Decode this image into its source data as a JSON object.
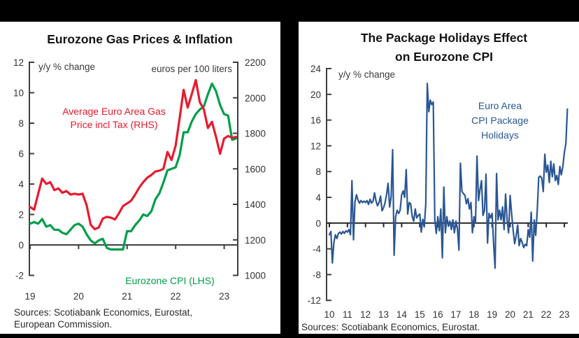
{
  "frame": {
    "bar_color": "#000000",
    "background": "#ffffff"
  },
  "left_panel": {
    "title": "Eurozone Gas Prices & Inflation",
    "left_axis_note": "y/y % change",
    "right_axis_note": "euros per 100 liters",
    "gas_label_lines": [
      "Average Euro Area Gas",
      "Price incl Tax (RHS)"
    ],
    "cpi_label": "Eurozone CPI (LHS)",
    "sources_lines": [
      "Sources: Scotiabank Economics, Eurostat,",
      "European Commission."
    ]
  },
  "right_panel": {
    "title_lines": [
      "The Package Holidays Effect",
      "on Eurozone CPI"
    ],
    "axis_note": "y/y % change",
    "series_label_lines": [
      "Euro Area",
      "CPI Package",
      "Holidays"
    ],
    "sources": "Sources: Scotiabank Economics, Eurostat."
  },
  "colors": {
    "gas_red": "#e81a2e",
    "cpi_green": "#009e49",
    "holidays_blue": "#2a5694",
    "axis": "#3f3f3f",
    "tick_text": "#333333"
  },
  "chart_data": [
    {
      "type": "line",
      "title": "Eurozone Gas Prices & Inflation",
      "x_start": "2019-01",
      "x_frequency": "monthly",
      "xticks": [
        19,
        20,
        21,
        22,
        23
      ],
      "left_axis": {
        "label": "y/y % change",
        "ylim": [
          -2,
          12
        ],
        "yticks": [
          12,
          10,
          8,
          6,
          4,
          2,
          0,
          -2
        ]
      },
      "right_axis": {
        "label": "euros per 100 liters",
        "ylim": [
          1000,
          2200
        ],
        "yticks": [
          2200,
          2000,
          1800,
          1600,
          1400,
          1200,
          1000
        ]
      },
      "grid": false,
      "series": [
        {
          "name": "Eurozone CPI (LHS)",
          "axis": "left",
          "color": "#009e49",
          "values": [
            1.4,
            1.5,
            1.4,
            1.7,
            1.2,
            1.3,
            1.0,
            1.0,
            0.8,
            0.7,
            1.0,
            1.3,
            1.4,
            1.2,
            0.7,
            0.3,
            0.1,
            0.3,
            0.4,
            -0.2,
            -0.3,
            -0.3,
            -0.3,
            -0.3,
            0.9,
            0.9,
            1.3,
            1.6,
            2.0,
            1.9,
            2.2,
            3.0,
            3.4,
            4.1,
            4.9,
            5.0,
            5.1,
            5.9,
            7.4,
            7.4,
            8.1,
            8.6,
            8.9,
            9.1,
            9.9,
            10.6,
            10.1,
            9.2,
            8.6,
            8.5,
            6.9,
            7.0
          ]
        },
        {
          "name": "Average Euro Area Gas Price incl Tax (RHS)",
          "axis": "right",
          "color": "#e81a2e",
          "values": [
            1385,
            1370,
            1460,
            1545,
            1515,
            1525,
            1480,
            1490,
            1465,
            1475,
            1455,
            1460,
            1455,
            1460,
            1395,
            1285,
            1260,
            1270,
            1320,
            1330,
            1325,
            1315,
            1350,
            1390,
            1405,
            1420,
            1455,
            1495,
            1525,
            1550,
            1565,
            1585,
            1590,
            1600,
            1695,
            1650,
            1730,
            1885,
            2045,
            1945,
            2020,
            2100,
            1975,
            1935,
            1830,
            1865,
            1780,
            1685,
            1770,
            1785,
            1775,
            1780
          ]
        }
      ]
    },
    {
      "type": "line",
      "title": "The Package Holidays Effect on Eurozone CPI",
      "x_start": "2010-01",
      "x_frequency": "monthly",
      "xticks": [
        10,
        11,
        12,
        13,
        14,
        15,
        16,
        17,
        18,
        19,
        20,
        21,
        22,
        23
      ],
      "left_axis": {
        "label": "y/y % change",
        "ylim": [
          -12,
          24
        ],
        "yticks": [
          24,
          20,
          16,
          12,
          8,
          4,
          0,
          -4,
          -8,
          -12
        ]
      },
      "grid": false,
      "series": [
        {
          "name": "Euro Area CPI Package Holidays",
          "axis": "left",
          "color": "#2a5694",
          "values": [
            -1.8,
            -1.3,
            -6.2,
            -3.0,
            -1.8,
            -2.4,
            -1.6,
            -1.4,
            -1.7,
            -1.3,
            -1.6,
            -1.2,
            -1.4,
            -1.0,
            -1.8,
            6.6,
            -2.6,
            3.3,
            4.4,
            3.6,
            3.1,
            3.5,
            3.2,
            3.4,
            3.2,
            3.5,
            2.9,
            3.7,
            3.1,
            3.4,
            4.7,
            3.4,
            2.7,
            3.2,
            4.2,
            1.9,
            2.4,
            3.2,
            4.5,
            6.2,
            2.5,
            4.0,
            11.4,
            -5.0,
            1.0,
            2.0,
            1.5,
            2.0,
            4.4,
            5.0,
            4.0,
            8.3,
            1.4,
            3.2,
            3.0,
            1.0,
            0.3,
            2.2,
            0.8,
            1.2,
            1.4,
            -1.4,
            0.6,
            -0.6,
            3.0,
            21.7,
            17.3,
            19.1,
            18.4,
            18.8,
            0.5,
            -1.6,
            1.0,
            -1.2,
            2.2,
            -5.4,
            5.6,
            -1.5,
            1.0,
            -0.5,
            0.3,
            -1.0,
            0.5,
            -1.5,
            0.3,
            -0.8,
            -4.2,
            9.3,
            4.9,
            4.6,
            4.3,
            3.0,
            3.8,
            2.2,
            3.2,
            -1.5,
            1.0,
            0.0,
            10.4,
            3.5,
            5.2,
            6.6,
            1.2,
            2.0,
            7.6,
            -3.1,
            1.5,
            0.8,
            1.5,
            -3.0,
            -7.0,
            7.7,
            0.5,
            2.0,
            0.5,
            2.5,
            -1.0,
            4.5,
            0.5,
            -1.5,
            4.3,
            1.4,
            -1.1,
            -3.2,
            -2.0,
            -0.3,
            -3.5,
            -2.4,
            -3.0,
            -3.8,
            -3.3,
            -3.5,
            -1.0,
            -2.2,
            1.7,
            -5.9,
            0.5,
            -1.9,
            2.0,
            7.1,
            7.3,
            7.0,
            4.9,
            10.7,
            7.9,
            9.0,
            6.3,
            9.6,
            7.2,
            9.2,
            6.6,
            7.4,
            6.0,
            8.8,
            7.5,
            8.8,
            11.0,
            12.3,
            17.7
          ]
        }
      ]
    }
  ]
}
